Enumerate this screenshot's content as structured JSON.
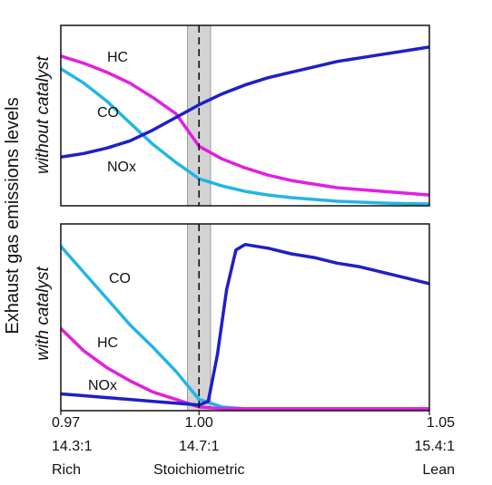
{
  "chart_data": [
    {
      "type": "line",
      "panel_label": "without catalyst",
      "xlim": [
        0.97,
        1.05
      ],
      "ylim": [
        0,
        100
      ],
      "series": [
        {
          "name": "HC",
          "color": "#e020e0",
          "x": [
            0.97,
            0.975,
            0.98,
            0.985,
            0.99,
            0.995,
            1.0,
            1.005,
            1.01,
            1.015,
            1.02,
            1.025,
            1.03,
            1.035,
            1.04,
            1.045,
            1.05
          ],
          "y": [
            83,
            79,
            74,
            68,
            60,
            51,
            33,
            26,
            21,
            17,
            14,
            12,
            10,
            9,
            8,
            7,
            6
          ]
        },
        {
          "name": "CO",
          "color": "#22b5e6",
          "x": [
            0.97,
            0.975,
            0.98,
            0.985,
            0.99,
            0.995,
            1.0,
            1.005,
            1.01,
            1.015,
            1.02,
            1.025,
            1.03,
            1.035,
            1.04,
            1.045,
            1.05
          ],
          "y": [
            76,
            68,
            58,
            46,
            34,
            24,
            15,
            11,
            8,
            6,
            4.5,
            3.5,
            2.5,
            2,
            1.5,
            1.2,
            1
          ]
        },
        {
          "name": "NOx",
          "color": "#1f1fc8",
          "x": [
            0.97,
            0.975,
            0.98,
            0.985,
            0.99,
            0.995,
            1.0,
            1.005,
            1.01,
            1.015,
            1.02,
            1.025,
            1.03,
            1.035,
            1.04,
            1.045,
            1.05
          ],
          "y": [
            27,
            29,
            32,
            36,
            42,
            49,
            56,
            62,
            67,
            71,
            74,
            77,
            80,
            82,
            84,
            86,
            88
          ]
        }
      ]
    },
    {
      "type": "line",
      "panel_label": "with catalyst",
      "xlim": [
        0.97,
        1.05
      ],
      "ylim": [
        0,
        100
      ],
      "series": [
        {
          "name": "CO",
          "color": "#22b5e6",
          "x": [
            0.97,
            0.975,
            0.98,
            0.985,
            0.99,
            0.995,
            1.0,
            1.005,
            1.01,
            1.015,
            1.02,
            1.025,
            1.03,
            1.035,
            1.04,
            1.045,
            1.05
          ],
          "y": [
            88,
            74,
            60,
            46,
            34,
            21,
            6,
            2,
            1,
            1,
            1,
            1,
            1,
            1,
            1,
            1,
            1
          ]
        },
        {
          "name": "HC",
          "color": "#e020e0",
          "x": [
            0.97,
            0.975,
            0.98,
            0.985,
            0.99,
            0.995,
            1.0,
            1.005,
            1.01,
            1.015,
            1.02,
            1.025,
            1.03,
            1.035,
            1.04,
            1.045,
            1.05
          ],
          "y": [
            44,
            32,
            23,
            16,
            10,
            6,
            2,
            1,
            1,
            1,
            1,
            1,
            1,
            1,
            1,
            1,
            1
          ]
        },
        {
          "name": "NOx",
          "color": "#1f1fc8",
          "x": [
            0.97,
            0.975,
            0.98,
            0.985,
            0.99,
            0.995,
            1.0,
            1.002,
            1.004,
            1.006,
            1.008,
            1.01,
            1.015,
            1.02,
            1.025,
            1.03,
            1.035,
            1.04,
            1.045,
            1.05
          ],
          "y": [
            9,
            8,
            7,
            6,
            5,
            4,
            3,
            5,
            30,
            65,
            86,
            89,
            87,
            84,
            82,
            79,
            77,
            74,
            71,
            68
          ]
        }
      ]
    }
  ],
  "ylabel": "Exhaust gas emissions levels",
  "ticks": [
    {
      "x": 0.97,
      "ratio": "0.97",
      "afr": "14.3:1",
      "mixture": "Rich"
    },
    {
      "x": 1.0,
      "ratio": "1.00",
      "afr": "14.7:1",
      "mixture": "Stoichiometric"
    },
    {
      "x": 1.05,
      "ratio": "1.05",
      "afr": "15.4:1",
      "mixture": "Lean"
    }
  ],
  "stoich_band": [
    0.9975,
    1.0025
  ],
  "stoich_line": 1.0
}
